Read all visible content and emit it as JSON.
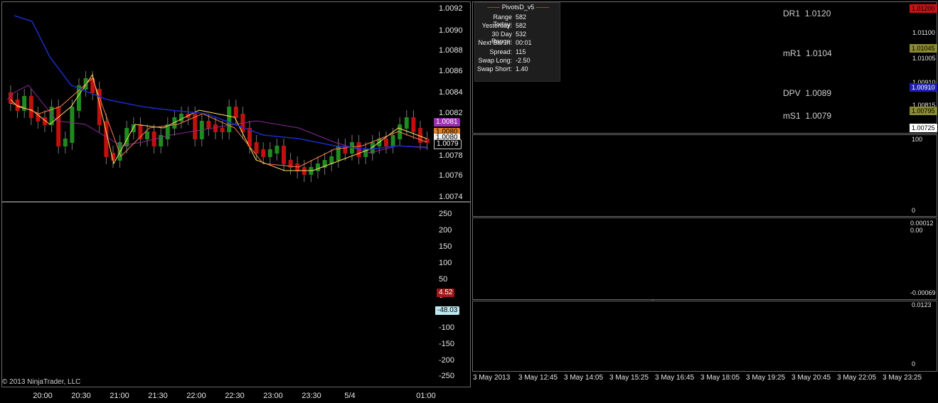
{
  "left_price": {
    "y_ticks": [
      "1.0092",
      "1.0090",
      "1.0088",
      "1.0086",
      "1.0084",
      "1.0082",
      "1.0078",
      "1.0076",
      "1.0074"
    ],
    "price_tags": [
      {
        "label": "1.0081",
        "bg": "#9b2fb0",
        "fg": "#ffffff"
      },
      {
        "label": "1.0080",
        "bg": "#e08020",
        "fg": "#000000"
      },
      {
        "label": "1.0080",
        "bg": "#f0f0f0",
        "fg": "#000000"
      },
      {
        "label": "1.0079",
        "bg": "#000000",
        "fg": "#ffffff"
      }
    ]
  },
  "left_cci": {
    "y_ticks": [
      "250",
      "200",
      "150",
      "100",
      "50",
      "0",
      "-50",
      "-100",
      "-150",
      "-200",
      "-250"
    ],
    "value_tags": [
      {
        "label": "4.52",
        "bg": "#a01818",
        "fg": "#ffffff"
      },
      {
        "label": "-48.03",
        "bg": "#bfe8f0",
        "fg": "#000000"
      }
    ]
  },
  "left_x_axis": [
    "20:00",
    "20:30",
    "21:00",
    "21:30",
    "22:00",
    "22:30",
    "23:00",
    "23:30",
    "5/4",
    "01:00"
  ],
  "copyright": "© 2013 NinjaTrader, LLC",
  "pivots_panel": {
    "title": "PivotsD_v5",
    "info_rows": [
      {
        "k": "Range  Today:",
        "v": "582"
      },
      {
        "k": "Yesterday:",
        "v": "582"
      },
      {
        "k": "30 Day Range:",
        "v": "532"
      },
      {
        "k": "Next Bar In:",
        "v": "00:01"
      },
      {
        "k": "Spread:",
        "v": "115"
      },
      {
        "k": "Swap  Long:",
        "v": "-2.50"
      },
      {
        "k": "Swap  Short:",
        "v": "1.40"
      }
    ],
    "levels": [
      {
        "name": "DR1",
        "value": "1.0120"
      },
      {
        "name": "mR1",
        "value": "1.0104"
      },
      {
        "name": "DPV",
        "value": "1.0089"
      },
      {
        "name": "mS1",
        "value": "1.0079"
      }
    ],
    "y_ticks": [
      "1.01100",
      "1.01005",
      "1.00910",
      "1.00815"
    ],
    "tags": [
      {
        "label": "1.01200",
        "bg": "#c81414",
        "fg": "#000000"
      },
      {
        "label": "1.01045",
        "bg": "#8a8a30",
        "fg": "#000000"
      },
      {
        "label": "1.00910",
        "bg": "#2020b0",
        "fg": "#ffffff"
      },
      {
        "label": "1.00795",
        "bg": "#8a8a30",
        "fg": "#000000"
      },
      {
        "label": "1.00725",
        "bg": "#ffffff",
        "fg": "#000000"
      }
    ]
  },
  "osc_panel": {
    "y_ticks": [
      "100",
      "0"
    ]
  },
  "hist_panel": {
    "y_ticks": [
      "0.00012",
      "0.00",
      "-0.00069"
    ]
  },
  "vol_panel": {
    "y_ticks": [
      "0.0123",
      "0"
    ]
  },
  "right_x_axis": [
    "3 May 2013",
    "3 May 12:45",
    "3 May 14:05",
    "3 May 15:25",
    "3 May 16:45",
    "3 May 18:05",
    "3 May 19:25",
    "3 May 20:45",
    "3 May 22:05",
    "3 May 23:25"
  ],
  "colors": {
    "up": "#1f8a1f",
    "down": "#c01010",
    "ma_blue": "#1a2cc8",
    "ma_yellow": "#ffe060",
    "cci_red": "#b01818",
    "grid_dash": "#c03030"
  }
}
